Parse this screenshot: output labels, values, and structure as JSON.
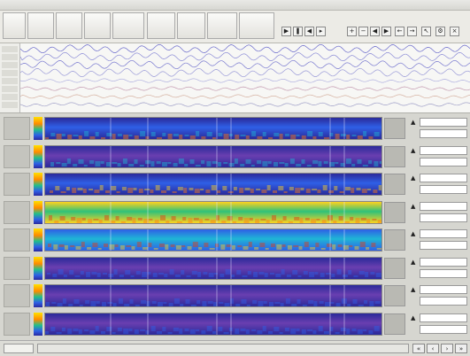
{
  "window": {
    "title": ""
  },
  "colors": {
    "deep_blue": "#2a2a9a",
    "blue": "#2f5fe6",
    "purple": "#6a3fb0",
    "cyan": "#1fb6d6",
    "green": "#2fc27a",
    "yellow": "#ffd21f",
    "orange": "#ff7a12",
    "red": "#e23a14"
  },
  "toolbar": {
    "buttons": [
      "",
      "",
      "",
      "",
      "",
      "",
      "",
      "",
      ""
    ],
    "icons": [
      "play-icon",
      "pause-icon",
      "rewind-icon",
      "forward-icon",
      "zoom-in-icon",
      "zoom-out-icon",
      "cursor-icon",
      "settings-icon",
      "close-icon"
    ]
  },
  "signal": {
    "channel_count": 8
  },
  "spectrogram": {
    "row_count": 8
  },
  "status": {
    "page": ""
  }
}
